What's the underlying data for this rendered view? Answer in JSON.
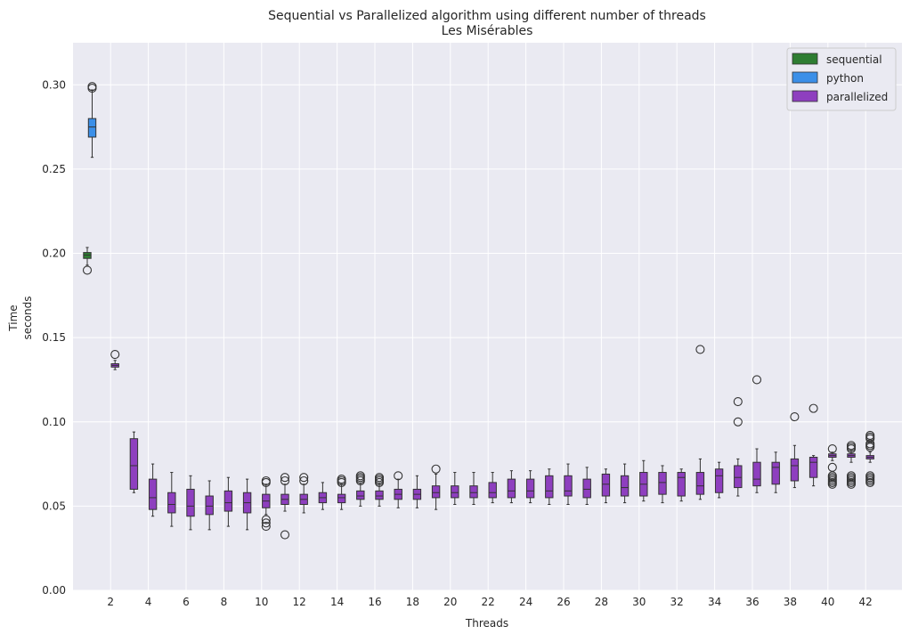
{
  "chart_data": {
    "type": "box",
    "title": "Sequential vs Parallelized algorithm using different number of threads",
    "subtitle": "Les Misérables",
    "xlabel": "Threads",
    "ylabel_line1": "Time",
    "ylabel_line2": "seconds",
    "ylim": [
      0,
      0.325
    ],
    "yticks": [
      0.0,
      0.05,
      0.1,
      0.15,
      0.2,
      0.25,
      0.3
    ],
    "ytick_labels": [
      "0.00",
      "0.05",
      "0.10",
      "0.15",
      "0.20",
      "0.25",
      "0.30"
    ],
    "xticks": [
      2,
      4,
      6,
      8,
      10,
      12,
      14,
      16,
      18,
      20,
      22,
      24,
      26,
      28,
      30,
      32,
      34,
      36,
      38,
      40,
      42
    ],
    "legend_position": "top-right",
    "colors": {
      "background": "#eaeaf2",
      "grid": "#ffffff",
      "sequential": "#2e7d32",
      "python": "#3b8fe8",
      "parallelized": "#8e3fbf"
    },
    "legend": [
      {
        "name": "sequential",
        "color": "#2e7d32"
      },
      {
        "name": "python",
        "color": "#3b8fe8"
      },
      {
        "name": "parallelized",
        "color": "#8e3fbf"
      }
    ],
    "sequential": {
      "x": 1,
      "q1": 0.197,
      "median": 0.199,
      "q3": 0.2005,
      "whislo": 0.193,
      "whishi": 0.2035,
      "fliers": [
        0.19
      ]
    },
    "python": {
      "x": 1,
      "q1": 0.269,
      "median": 0.275,
      "q3": 0.28,
      "whislo": 0.257,
      "whishi": 0.297,
      "fliers": [
        0.298,
        0.299
      ]
    },
    "parallelized": [
      {
        "threads": 2,
        "q1": 0.1325,
        "median": 0.1335,
        "q3": 0.1345,
        "whislo": 0.131,
        "whishi": 0.1365,
        "fliers": [
          0.14
        ]
      },
      {
        "threads": 3,
        "q1": 0.06,
        "median": 0.074,
        "q3": 0.09,
        "whislo": 0.058,
        "whishi": 0.094,
        "fliers": []
      },
      {
        "threads": 4,
        "q1": 0.048,
        "median": 0.055,
        "q3": 0.066,
        "whislo": 0.044,
        "whishi": 0.075,
        "fliers": []
      },
      {
        "threads": 5,
        "q1": 0.046,
        "median": 0.051,
        "q3": 0.058,
        "whislo": 0.038,
        "whishi": 0.07,
        "fliers": []
      },
      {
        "threads": 6,
        "q1": 0.044,
        "median": 0.05,
        "q3": 0.06,
        "whislo": 0.036,
        "whishi": 0.068,
        "fliers": []
      },
      {
        "threads": 7,
        "q1": 0.045,
        "median": 0.05,
        "q3": 0.056,
        "whislo": 0.036,
        "whishi": 0.065,
        "fliers": []
      },
      {
        "threads": 8,
        "q1": 0.047,
        "median": 0.052,
        "q3": 0.059,
        "whislo": 0.038,
        "whishi": 0.067,
        "fliers": []
      },
      {
        "threads": 9,
        "q1": 0.046,
        "median": 0.052,
        "q3": 0.058,
        "whislo": 0.036,
        "whishi": 0.066,
        "fliers": []
      },
      {
        "threads": 10,
        "q1": 0.049,
        "median": 0.053,
        "q3": 0.057,
        "whislo": 0.045,
        "whishi": 0.063,
        "fliers": [
          0.038,
          0.04,
          0.042,
          0.064,
          0.065
        ]
      },
      {
        "threads": 11,
        "q1": 0.051,
        "median": 0.054,
        "q3": 0.057,
        "whislo": 0.047,
        "whishi": 0.063,
        "fliers": [
          0.033,
          0.065,
          0.067
        ]
      },
      {
        "threads": 12,
        "q1": 0.051,
        "median": 0.054,
        "q3": 0.057,
        "whislo": 0.046,
        "whishi": 0.063,
        "fliers": [
          0.065,
          0.067
        ]
      },
      {
        "threads": 13,
        "q1": 0.052,
        "median": 0.055,
        "q3": 0.058,
        "whislo": 0.048,
        "whishi": 0.064,
        "fliers": []
      },
      {
        "threads": 14,
        "q1": 0.052,
        "median": 0.055,
        "q3": 0.057,
        "whislo": 0.048,
        "whishi": 0.063,
        "fliers": [
          0.064,
          0.065,
          0.066
        ]
      },
      {
        "threads": 15,
        "q1": 0.054,
        "median": 0.056,
        "q3": 0.059,
        "whislo": 0.05,
        "whishi": 0.063,
        "fliers": [
          0.065,
          0.066,
          0.067,
          0.068
        ]
      },
      {
        "threads": 16,
        "q1": 0.054,
        "median": 0.056,
        "q3": 0.059,
        "whislo": 0.05,
        "whishi": 0.063,
        "fliers": [
          0.064,
          0.065,
          0.066,
          0.067
        ]
      },
      {
        "threads": 17,
        "q1": 0.054,
        "median": 0.057,
        "q3": 0.06,
        "whislo": 0.049,
        "whishi": 0.066,
        "fliers": [
          0.068
        ]
      },
      {
        "threads": 18,
        "q1": 0.054,
        "median": 0.057,
        "q3": 0.06,
        "whislo": 0.049,
        "whishi": 0.068,
        "fliers": []
      },
      {
        "threads": 19,
        "q1": 0.055,
        "median": 0.058,
        "q3": 0.062,
        "whislo": 0.048,
        "whishi": 0.069,
        "fliers": [
          0.072
        ]
      },
      {
        "threads": 20,
        "q1": 0.055,
        "median": 0.058,
        "q3": 0.062,
        "whislo": 0.051,
        "whishi": 0.07,
        "fliers": []
      },
      {
        "threads": 21,
        "q1": 0.055,
        "median": 0.058,
        "q3": 0.062,
        "whislo": 0.051,
        "whishi": 0.07,
        "fliers": []
      },
      {
        "threads": 22,
        "q1": 0.055,
        "median": 0.058,
        "q3": 0.064,
        "whislo": 0.052,
        "whishi": 0.07,
        "fliers": []
      },
      {
        "threads": 23,
        "q1": 0.055,
        "median": 0.059,
        "q3": 0.066,
        "whislo": 0.052,
        "whishi": 0.071,
        "fliers": []
      },
      {
        "threads": 24,
        "q1": 0.055,
        "median": 0.059,
        "q3": 0.066,
        "whislo": 0.052,
        "whishi": 0.071,
        "fliers": []
      },
      {
        "threads": 25,
        "q1": 0.055,
        "median": 0.059,
        "q3": 0.068,
        "whislo": 0.051,
        "whishi": 0.072,
        "fliers": []
      },
      {
        "threads": 26,
        "q1": 0.056,
        "median": 0.059,
        "q3": 0.068,
        "whislo": 0.051,
        "whishi": 0.075,
        "fliers": []
      },
      {
        "threads": 27,
        "q1": 0.055,
        "median": 0.06,
        "q3": 0.066,
        "whislo": 0.051,
        "whishi": 0.073,
        "fliers": []
      },
      {
        "threads": 28,
        "q1": 0.056,
        "median": 0.063,
        "q3": 0.069,
        "whislo": 0.052,
        "whishi": 0.072,
        "fliers": []
      },
      {
        "threads": 29,
        "q1": 0.056,
        "median": 0.061,
        "q3": 0.068,
        "whislo": 0.052,
        "whishi": 0.075,
        "fliers": []
      },
      {
        "threads": 30,
        "q1": 0.056,
        "median": 0.063,
        "q3": 0.07,
        "whislo": 0.053,
        "whishi": 0.077,
        "fliers": []
      },
      {
        "threads": 31,
        "q1": 0.057,
        "median": 0.064,
        "q3": 0.07,
        "whislo": 0.052,
        "whishi": 0.074,
        "fliers": []
      },
      {
        "threads": 32,
        "q1": 0.056,
        "median": 0.067,
        "q3": 0.07,
        "whislo": 0.053,
        "whishi": 0.072,
        "fliers": []
      },
      {
        "threads": 33,
        "q1": 0.057,
        "median": 0.062,
        "q3": 0.07,
        "whislo": 0.054,
        "whishi": 0.078,
        "fliers": [
          0.143
        ]
      },
      {
        "threads": 34,
        "q1": 0.058,
        "median": 0.068,
        "q3": 0.072,
        "whislo": 0.055,
        "whishi": 0.076,
        "fliers": []
      },
      {
        "threads": 35,
        "q1": 0.061,
        "median": 0.067,
        "q3": 0.074,
        "whislo": 0.056,
        "whishi": 0.078,
        "fliers": [
          0.1,
          0.112
        ]
      },
      {
        "threads": 36,
        "q1": 0.062,
        "median": 0.066,
        "q3": 0.076,
        "whislo": 0.058,
        "whishi": 0.084,
        "fliers": [
          0.125
        ]
      },
      {
        "threads": 37,
        "q1": 0.063,
        "median": 0.073,
        "q3": 0.076,
        "whislo": 0.058,
        "whishi": 0.082,
        "fliers": []
      },
      {
        "threads": 38,
        "q1": 0.065,
        "median": 0.074,
        "q3": 0.078,
        "whislo": 0.061,
        "whishi": 0.086,
        "fliers": [
          0.103
        ]
      },
      {
        "threads": 39,
        "q1": 0.067,
        "median": 0.076,
        "q3": 0.079,
        "whislo": 0.062,
        "whishi": 0.08,
        "fliers": [
          0.108
        ]
      },
      {
        "threads": 40,
        "q1": 0.079,
        "median": 0.08,
        "q3": 0.081,
        "whislo": 0.077,
        "whishi": 0.082,
        "fliers": [
          0.063,
          0.064,
          0.065,
          0.066,
          0.067,
          0.068,
          0.073,
          0.084
        ]
      },
      {
        "threads": 41,
        "q1": 0.079,
        "median": 0.08,
        "q3": 0.081,
        "whislo": 0.076,
        "whishi": 0.083,
        "fliers": [
          0.063,
          0.064,
          0.065,
          0.066,
          0.067,
          0.068,
          0.084,
          0.085,
          0.086
        ]
      },
      {
        "threads": 42,
        "q1": 0.078,
        "median": 0.079,
        "q3": 0.08,
        "whislo": 0.076,
        "whishi": 0.082,
        "fliers": [
          0.064,
          0.065,
          0.066,
          0.067,
          0.068,
          0.085,
          0.086,
          0.087,
          0.09,
          0.091,
          0.092
        ]
      }
    ]
  }
}
